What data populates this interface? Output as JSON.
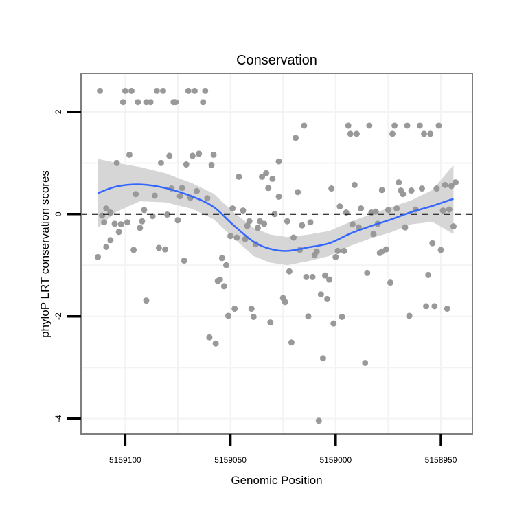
{
  "chart_data": {
    "type": "scatter",
    "title": "Conservation",
    "xlabel": "Genomic Position",
    "ylabel": "phyloP LRT conservation scores",
    "x_reversed": true,
    "xlim": [
      5159121,
      5158935
    ],
    "ylim": [
      -4.3,
      2.75
    ],
    "x_ticks": [
      5159100,
      5159050,
      5159000,
      5158950
    ],
    "x_tick_labels": [
      "5159100",
      "5159050",
      "5159000",
      "5158950"
    ],
    "y_ticks": [
      2,
      0,
      -2,
      -4
    ],
    "y_tick_labels": [
      "2",
      "0",
      "-2",
      "-4"
    ],
    "grid": true,
    "reference_line": {
      "y": 0,
      "style": "dashed",
      "color": "#000000"
    },
    "colors": {
      "points": "#999999",
      "smooth": "#3366ff",
      "ribbon": "#d6d6d6",
      "panel_border": "#7f7f7f"
    },
    "points": [
      [
        5159112,
        2.41
      ],
      [
        5159100,
        2.41
      ],
      [
        5159097,
        2.41
      ],
      [
        5159085,
        2.41
      ],
      [
        5159082,
        2.41
      ],
      [
        5159070,
        2.41
      ],
      [
        5159067,
        2.41
      ],
      [
        5159062,
        2.41
      ],
      [
        5159101,
        2.19
      ],
      [
        5159094,
        2.19
      ],
      [
        5159090,
        2.19
      ],
      [
        5159088,
        2.19
      ],
      [
        5159077,
        2.19
      ],
      [
        5159076,
        2.19
      ],
      [
        5159063,
        2.19
      ],
      [
        5159098,
        1.16
      ],
      [
        5159104,
        1.0
      ],
      [
        5159083,
        1.0
      ],
      [
        5159079,
        1.14
      ],
      [
        5159068,
        1.14
      ],
      [
        5159065,
        1.18
      ],
      [
        5159058,
        1.16
      ],
      [
        5159071,
        0.97
      ],
      [
        5159059,
        0.96
      ],
      [
        5159027,
        1.03
      ],
      [
        5159046,
        0.73
      ],
      [
        5159035,
        0.73
      ],
      [
        5159033,
        0.8
      ],
      [
        5159030,
        0.69
      ],
      [
        5159032,
        0.51
      ],
      [
        5159027,
        0.34
      ],
      [
        5159095,
        0.39
      ],
      [
        5159086,
        0.36
      ],
      [
        5159078,
        0.5
      ],
      [
        5159073,
        0.51
      ],
      [
        5159074,
        0.35
      ],
      [
        5159069,
        0.32
      ],
      [
        5159066,
        0.45
      ],
      [
        5159061,
        0.31
      ],
      [
        5159109,
        0.11
      ],
      [
        5159111,
        -0.03
      ],
      [
        5159107,
        0.03
      ],
      [
        5159091,
        0.08
      ],
      [
        5159087,
        -0.04
      ],
      [
        5159080,
        -0.01
      ],
      [
        5159110,
        -0.16
      ],
      [
        5159105,
        -0.19
      ],
      [
        5159102,
        -0.2
      ],
      [
        5159099,
        -0.16
      ],
      [
        5159092,
        -0.14
      ],
      [
        5159093,
        -0.27
      ],
      [
        5159075,
        -0.12
      ],
      [
        5159103,
        -0.35
      ],
      [
        5159107,
        -0.51
      ],
      [
        5159109,
        -0.64
      ],
      [
        5159113,
        -0.84
      ],
      [
        5159096,
        -0.7
      ],
      [
        5159084,
        -0.66
      ],
      [
        5159081,
        -0.69
      ],
      [
        5159072,
        -0.91
      ],
      [
        5159054,
        -0.86
      ],
      [
        5159052,
        -1.0
      ],
      [
        5159049,
        0.11
      ],
      [
        5159044,
        0.07
      ],
      [
        5159050,
        -0.43
      ],
      [
        5159047,
        -0.46
      ],
      [
        5159043,
        -0.49
      ],
      [
        5159038,
        -0.59
      ],
      [
        5159042,
        -0.23
      ],
      [
        5159041,
        -0.14
      ],
      [
        5159037,
        -0.27
      ],
      [
        5159036,
        -0.14
      ],
      [
        5159034,
        -0.19
      ],
      [
        5159029,
        0.0
      ],
      [
        5159015,
        1.73
      ],
      [
        5159019,
        1.49
      ],
      [
        5159018,
        0.43
      ],
      [
        5159002,
        0.5
      ],
      [
        5158991,
        0.57
      ],
      [
        5158994,
        1.73
      ],
      [
        5158993,
        1.57
      ],
      [
        5158990,
        1.57
      ],
      [
        5158984,
        1.73
      ],
      [
        5158972,
        1.73
      ],
      [
        5158973,
        1.57
      ],
      [
        5158966,
        1.73
      ],
      [
        5158960,
        1.73
      ],
      [
        5158958,
        1.57
      ],
      [
        5158955,
        1.57
      ],
      [
        5158951,
        1.73
      ],
      [
        5158978,
        0.47
      ],
      [
        5158970,
        0.62
      ],
      [
        5158969,
        0.46
      ],
      [
        5158968,
        0.39
      ],
      [
        5158964,
        0.46
      ],
      [
        5158959,
        0.5
      ],
      [
        5158952,
        0.5
      ],
      [
        5158948,
        0.57
      ],
      [
        5158945,
        0.55
      ],
      [
        5158943,
        0.62
      ],
      [
        5158998,
        0.15
      ],
      [
        5158995,
        0.03
      ],
      [
        5158988,
        0.11
      ],
      [
        5158983,
        0.03
      ],
      [
        5158981,
        0.05
      ],
      [
        5158975,
        0.08
      ],
      [
        5158971,
        0.11
      ],
      [
        5158962,
        0.09
      ],
      [
        5158949,
        0.07
      ],
      [
        5158946,
        0.09
      ],
      [
        5159023,
        -0.14
      ],
      [
        5159016,
        -0.22
      ],
      [
        5159012,
        -0.16
      ],
      [
        5158992,
        -0.2
      ],
      [
        5158989,
        -0.26
      ],
      [
        5158980,
        -0.19
      ],
      [
        5158967,
        -0.26
      ],
      [
        5158944,
        -0.24
      ],
      [
        5158982,
        -0.39
      ],
      [
        5159020,
        -0.46
      ],
      [
        5159017,
        -0.7
      ],
      [
        5159010,
        -0.8
      ],
      [
        5159009,
        -0.73
      ],
      [
        5159000,
        -0.84
      ],
      [
        5158999,
        -0.72
      ],
      [
        5158996,
        -0.72
      ],
      [
        5158979,
        -0.76
      ],
      [
        5158978,
        -0.73
      ],
      [
        5158976,
        -0.69
      ],
      [
        5158954,
        -0.57
      ],
      [
        5158950,
        -0.7
      ],
      [
        5159056,
        -1.31
      ],
      [
        5159055,
        -1.28
      ],
      [
        5159053,
        -1.41
      ],
      [
        5159090,
        -1.69
      ],
      [
        5159048,
        -1.85
      ],
      [
        5159051,
        -1.99
      ],
      [
        5159040,
        -1.85
      ],
      [
        5159039,
        -2.01
      ],
      [
        5159031,
        -2.12
      ],
      [
        5159060,
        -2.41
      ],
      [
        5159057,
        -2.53
      ],
      [
        5159022,
        -1.12
      ],
      [
        5159014,
        -1.23
      ],
      [
        5159011,
        -1.23
      ],
      [
        5159005,
        -1.2
      ],
      [
        5159003,
        -1.28
      ],
      [
        5158985,
        -1.15
      ],
      [
        5158974,
        -1.34
      ],
      [
        5158956,
        -1.19
      ],
      [
        5159025,
        -1.64
      ],
      [
        5159024,
        -1.72
      ],
      [
        5159007,
        -1.57
      ],
      [
        5159004,
        -1.66
      ],
      [
        5159013,
        -2.0
      ],
      [
        5158997,
        -2.01
      ],
      [
        5159001,
        -2.14
      ],
      [
        5158957,
        -1.8
      ],
      [
        5158953,
        -1.8
      ],
      [
        5158947,
        -1.85
      ],
      [
        5158965,
        -1.99
      ],
      [
        5159021,
        -2.51
      ],
      [
        5159006,
        -2.82
      ],
      [
        5158986,
        -2.91
      ],
      [
        5159008,
        -4.04
      ]
    ],
    "smooth": {
      "x": [
        5159113,
        5159104,
        5159093,
        5159081,
        5159068,
        5159058,
        5159049,
        5159039,
        5159031,
        5159023,
        5159013,
        5159003,
        5158993,
        5158983,
        5158974,
        5158964,
        5158954,
        5158944
      ],
      "y": [
        0.41,
        0.54,
        0.58,
        0.51,
        0.34,
        0.14,
        -0.2,
        -0.54,
        -0.68,
        -0.72,
        -0.65,
        -0.57,
        -0.38,
        -0.23,
        -0.11,
        0.04,
        0.16,
        0.3
      ],
      "ymin": [
        -0.27,
        0.05,
        0.25,
        0.23,
        0.1,
        -0.1,
        -0.45,
        -0.82,
        -0.95,
        -1.0,
        -0.92,
        -0.82,
        -0.62,
        -0.47,
        -0.36,
        -0.2,
        -0.15,
        -0.39
      ],
      "ymax": [
        1.08,
        1.0,
        0.92,
        0.8,
        0.6,
        0.4,
        0.05,
        -0.27,
        -0.4,
        -0.45,
        -0.4,
        -0.33,
        -0.15,
        0.0,
        0.13,
        0.27,
        0.47,
        0.96
      ]
    }
  }
}
